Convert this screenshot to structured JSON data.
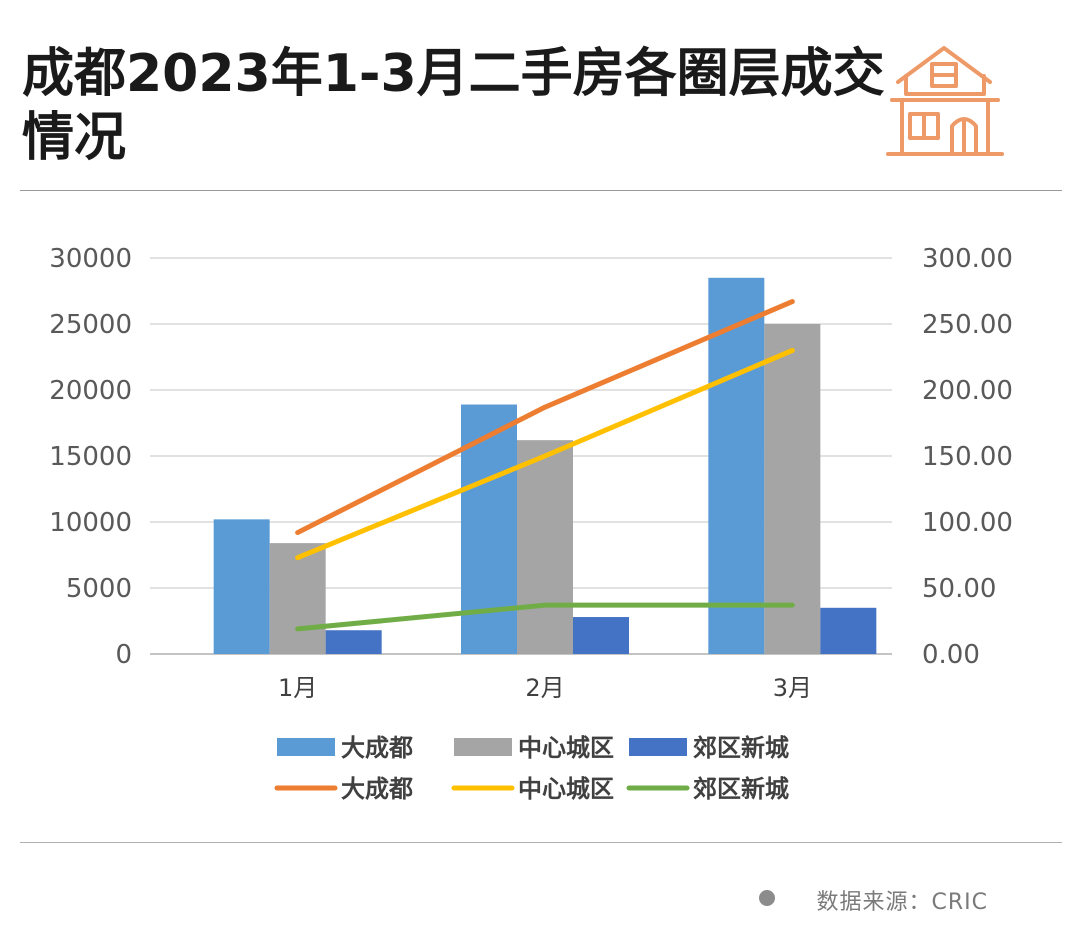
{
  "header": {
    "title": "成都2023年1-3月二手房各圈层成交情况"
  },
  "footer": {
    "source": "数据来源：CRIC"
  },
  "chart_data": {
    "type": "bar",
    "title": "成都2023年1-3月二手房各圈层成交情况",
    "categories": [
      "1月",
      "2月",
      "3月"
    ],
    "bar_series": [
      {
        "name": "大成都",
        "color": "#5B9BD5",
        "values": [
          10200,
          18900,
          28500
        ]
      },
      {
        "name": "中心城区",
        "color": "#A5A5A5",
        "values": [
          8400,
          16200,
          25000
        ]
      },
      {
        "name": "郊区新城",
        "color": "#4472C4",
        "values": [
          1800,
          2800,
          3500
        ]
      }
    ],
    "line_series": [
      {
        "name": "大成都",
        "color": "#ED7D31",
        "values": [
          92,
          187,
          267
        ]
      },
      {
        "name": "中心城区",
        "color": "#FFC000",
        "values": [
          73,
          150,
          230
        ]
      },
      {
        "name": "郊区新城",
        "color": "#70AD47",
        "values": [
          19,
          37,
          37
        ]
      }
    ],
    "y_left": {
      "min": 0,
      "max": 30000,
      "ticks": [
        "0",
        "5000",
        "10000",
        "15000",
        "20000",
        "25000",
        "30000"
      ]
    },
    "y_right": {
      "min": 0,
      "max": 300,
      "ticks": [
        "0.00",
        "50.00",
        "100.00",
        "150.00",
        "200.00",
        "250.00",
        "300.00"
      ]
    },
    "grid": true,
    "legend_position": "bottom"
  }
}
